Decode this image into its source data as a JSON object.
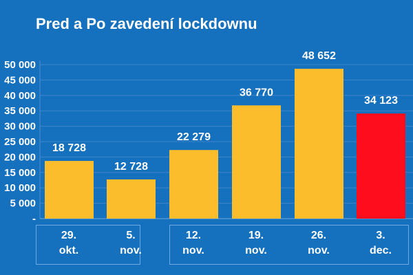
{
  "chart_data": {
    "type": "bar",
    "title": "Pred a Po zavedení lockdownu",
    "categories": [
      [
        "29.",
        "okt."
      ],
      [
        "5.",
        "nov."
      ],
      [
        "12.",
        "nov."
      ],
      [
        "19.",
        "nov."
      ],
      [
        "26.",
        "nov."
      ],
      [
        "3.",
        "dec."
      ]
    ],
    "values": [
      18728,
      12728,
      22279,
      36770,
      48652,
      34123
    ],
    "data_labels": [
      "18 728",
      "12 728",
      "22 279",
      "36 770",
      "48 652",
      "34 123"
    ],
    "colors": [
      "#fbbd2c",
      "#fbbd2c",
      "#fbbd2c",
      "#fbbd2c",
      "#fbbd2c",
      "#fe0d1d"
    ],
    "yticks": [
      0,
      5000,
      10000,
      15000,
      20000,
      25000,
      30000,
      35000,
      40000,
      45000,
      50000
    ],
    "ytick_labels": [
      "-",
      "5 000",
      "10 000",
      "15 000",
      "20 000",
      "25 000",
      "30 000",
      "35 000",
      "40 000",
      "45 000",
      "50 000"
    ],
    "ylim": [
      0,
      50000
    ],
    "grid": true,
    "groups": [
      [
        0,
        1
      ],
      [
        2,
        3,
        4,
        5
      ]
    ],
    "xlabel": "",
    "ylabel": ""
  }
}
